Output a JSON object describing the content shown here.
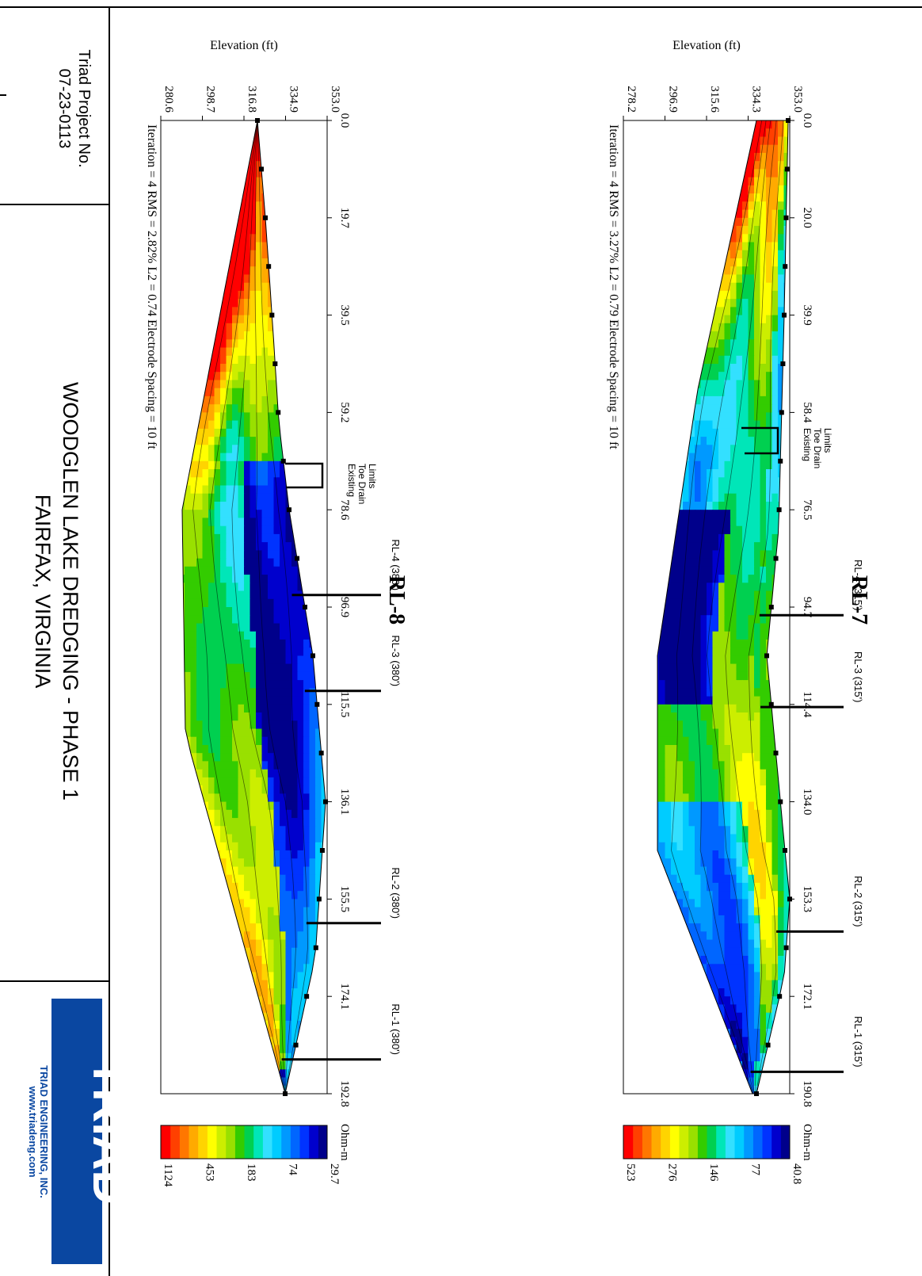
{
  "title_block": {
    "project_label": "Triad Project No.",
    "project_no": "07-23-0113",
    "title_line1": "WOODGLEN LAKE DREDGING - PHASE 1",
    "title_line2": "FAIRFAX, VIRGINIA",
    "logo_text": "TRIAD",
    "company": "TRIAD ENGINEERING, INC.",
    "website": "www.triadeng.com"
  },
  "colors": {
    "scale": [
      "#00008b",
      "#0000cd",
      "#0033ff",
      "#0066ff",
      "#0099ff",
      "#00ccff",
      "#33e0ff",
      "#00e6b8",
      "#00d050",
      "#33cc00",
      "#99e000",
      "#ccee00",
      "#ffff00",
      "#ffd400",
      "#ffaa00",
      "#ff7700",
      "#ff4000",
      "#ff0000"
    ]
  },
  "chart_data": [
    {
      "type": "heatmap",
      "title": "RL-7",
      "xlabel": "",
      "ylabel": "Elevation (ft)",
      "x_ticks": [
        "0.0",
        "20.0",
        "39.9",
        "58.4",
        "76.5",
        "94.7",
        "114.4",
        "134.0",
        "153.3",
        "172.1",
        "190.8"
      ],
      "y_ticks": [
        "353.0",
        "334.3",
        "315.6",
        "296.9",
        "278.2"
      ],
      "xlim": [
        0,
        190.8
      ],
      "ylim": [
        278.2,
        353.0
      ],
      "footer": "Iteration = 4   RMS = 3.27%   L2 = 0.79   Electrode Spacing = 10 ft",
      "annotation": "Existing\nToe Drain\nLimits",
      "borings": [
        {
          "label": "RL-4 (315')",
          "x": 97.0
        },
        {
          "label": "RL-3 (315')",
          "x": 115.0
        },
        {
          "label": "RL-2 (315')",
          "x": 159.0
        },
        {
          "label": "RL-1 (315')",
          "x": 186.5
        }
      ],
      "colorbar": {
        "unit": "Ohm-m",
        "ticks": [
          "40.8",
          "77",
          "146",
          "276",
          "523"
        ]
      }
    },
    {
      "type": "heatmap",
      "title": "RL-8",
      "xlabel": "",
      "ylabel": "Elevation (ft)",
      "x_ticks": [
        "0.0",
        "19.7",
        "39.5",
        "59.2",
        "78.6",
        "96.9",
        "115.5",
        "136.1",
        "155.5",
        "174.1",
        "192.8"
      ],
      "y_ticks": [
        "353.0",
        "334.9",
        "316.8",
        "298.7",
        "280.6"
      ],
      "xlim": [
        0,
        192.8
      ],
      "ylim": [
        280.6,
        353.0
      ],
      "footer": "Iteration = 4   RMS = 2.82%   L2 = 0.74   Electrode Spacing = 10 ft",
      "annotation": "Existing\nToe Drain\nLimits",
      "borings": [
        {
          "label": "RL-4 (380')",
          "x": 94.0
        },
        {
          "label": "RL-3 (380')",
          "x": 113.0
        },
        {
          "label": "RL-2 (380')",
          "x": 159.0
        },
        {
          "label": "RL-1 (380')",
          "x": 186.0
        }
      ],
      "colorbar": {
        "unit": "Ohm-m",
        "ticks": [
          "29.7",
          "74",
          "183",
          "453",
          "1124"
        ]
      }
    }
  ]
}
